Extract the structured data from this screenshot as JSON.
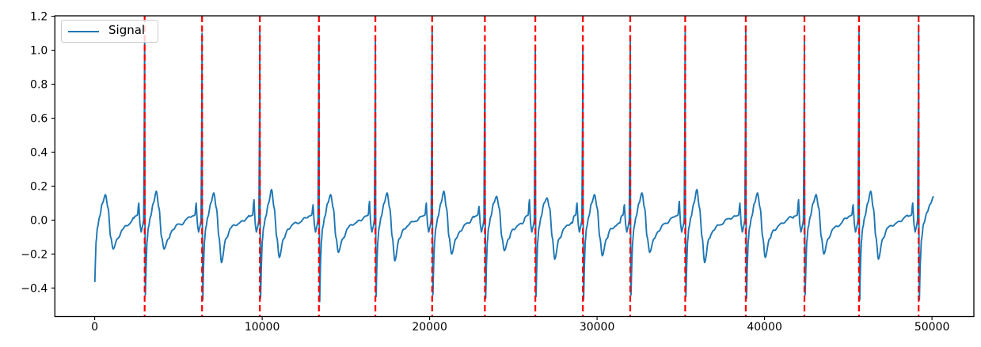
{
  "chart_data": {
    "type": "line",
    "title": "",
    "xlabel": "",
    "ylabel": "",
    "grid": false,
    "legend": {
      "label": "Signal",
      "position": "upper-left"
    },
    "series": [
      {
        "name": "Signal",
        "color": "#1f77b4",
        "description": "ECG-like periodic waveform: tall R spikes ~1.1, S troughs ~-0.46, T bump ~0.16, post-T dip ~-0.2, flat baseline ~0, small P bump before each spike"
      }
    ],
    "xlim": [
      -2380,
      52500
    ],
    "ylim": [
      -0.568,
      1.203
    ],
    "xticks": {
      "values": [
        0,
        10000,
        20000,
        30000,
        40000,
        50000
      ],
      "labels": [
        "0",
        "10000",
        "20000",
        "30000",
        "40000",
        "50000"
      ]
    },
    "yticks": {
      "values": [
        -0.4,
        -0.2,
        0.0,
        0.2,
        0.4,
        0.6,
        0.8,
        1.0,
        1.2
      ],
      "labels": [
        "−0.4",
        "−0.2",
        "0.0",
        "0.2",
        "0.4",
        "0.6",
        "0.8",
        "1.0",
        "1.2"
      ]
    },
    "r_peak_markers": {
      "color": "#ff0000",
      "linestyle": "dashed",
      "x": [
        2980,
        6410,
        9860,
        13390,
        16760,
        20150,
        23300,
        26310,
        29150,
        31980,
        35260,
        38880,
        42380,
        45640,
        49200
      ]
    },
    "beats": [
      {
        "x": 2980,
        "r_height": 1.08,
        "s_depth": -0.44,
        "t_height": 0.17,
        "post_t_dip": -0.17,
        "p_bump": 0.1
      },
      {
        "x": 6410,
        "r_height": 1.1,
        "s_depth": -0.47,
        "t_height": 0.16,
        "post_t_dip": -0.25,
        "p_bump": 0.12
      },
      {
        "x": 9860,
        "r_height": 1.12,
        "s_depth": -0.46,
        "t_height": 0.18,
        "post_t_dip": -0.22,
        "p_bump": 0.09
      },
      {
        "x": 13390,
        "r_height": 1.07,
        "s_depth": -0.48,
        "t_height": 0.15,
        "post_t_dip": -0.19,
        "p_bump": 0.11
      },
      {
        "x": 16760,
        "r_height": 1.06,
        "s_depth": -0.45,
        "t_height": 0.16,
        "post_t_dip": -0.24,
        "p_bump": 0.1
      },
      {
        "x": 20150,
        "r_height": 1.14,
        "s_depth": -0.44,
        "t_height": 0.17,
        "post_t_dip": -0.2,
        "p_bump": 0.08
      },
      {
        "x": 23300,
        "r_height": 1.03,
        "s_depth": -0.46,
        "t_height": 0.14,
        "post_t_dip": -0.18,
        "p_bump": 0.12
      },
      {
        "x": 26310,
        "r_height": 1.03,
        "s_depth": -0.45,
        "t_height": 0.13,
        "post_t_dip": -0.23,
        "p_bump": 0.1
      },
      {
        "x": 29150,
        "r_height": 1.02,
        "s_depth": -0.47,
        "t_height": 0.15,
        "post_t_dip": -0.21,
        "p_bump": 0.09
      },
      {
        "x": 31980,
        "r_height": 1.06,
        "s_depth": -0.44,
        "t_height": 0.16,
        "post_t_dip": -0.19,
        "p_bump": 0.11
      },
      {
        "x": 35260,
        "r_height": 1.11,
        "s_depth": -0.45,
        "t_height": 0.18,
        "post_t_dip": -0.25,
        "p_bump": 0.1
      },
      {
        "x": 38880,
        "r_height": 1.14,
        "s_depth": -0.46,
        "t_height": 0.16,
        "post_t_dip": -0.22,
        "p_bump": 0.12
      },
      {
        "x": 42380,
        "r_height": 1.06,
        "s_depth": -0.44,
        "t_height": 0.15,
        "post_t_dip": -0.2,
        "p_bump": 0.09
      },
      {
        "x": 45640,
        "r_height": 1.13,
        "s_depth": -0.47,
        "t_height": 0.17,
        "post_t_dip": -0.23,
        "p_bump": 0.1
      },
      {
        "x": 49200,
        "r_height": 1.15,
        "s_depth": -0.47,
        "t_height": 0.14,
        "post_t_dip": -0.21,
        "p_bump": 0.08
      }
    ],
    "lead_in": {
      "virtual_peak_x": -60,
      "s_depth": -0.46,
      "t_height": 0.15,
      "post_t_dip": -0.17,
      "p_bump": 0.1,
      "start_x": 0,
      "start_value": -0.4
    },
    "tail": {
      "end_x": 50100,
      "end_value": 0.14
    }
  },
  "colors": {
    "figure_bg": "#ffffff",
    "axes_bg": "#ffffff",
    "spine": "#000000",
    "tick_label": "#000000",
    "signal": "#1f77b4",
    "marker": "#ff0000",
    "legend_border": "#cccccc"
  }
}
